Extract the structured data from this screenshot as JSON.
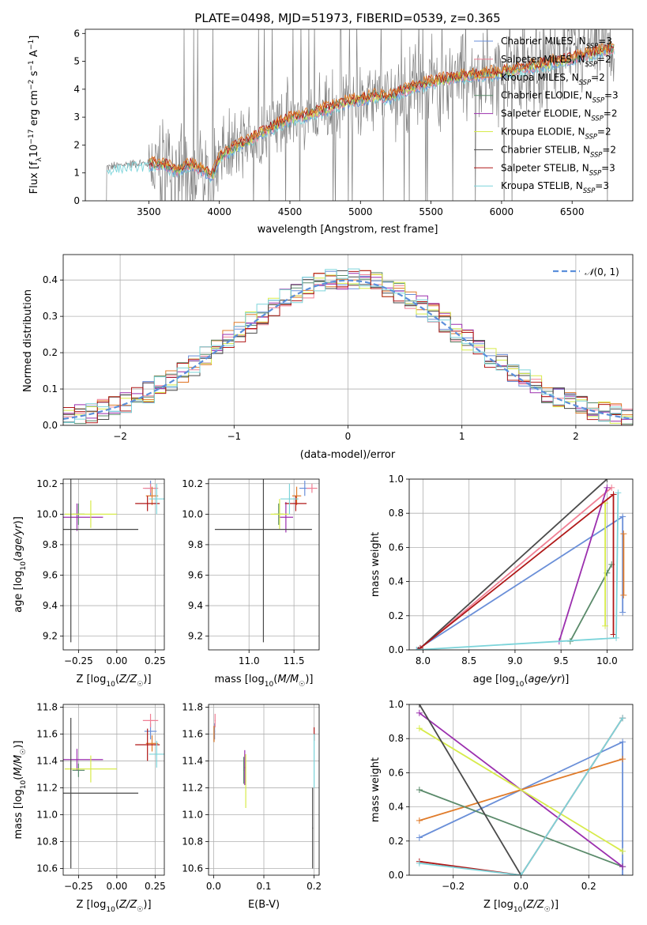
{
  "colors": {
    "chabrier_miles": "#6A8FD8",
    "salpeter_miles": "#F07F94",
    "kroupa_miles": "#E07B2A",
    "chabrier_elodie": "#5A8A6A",
    "salpeter_elodie": "#9B2FAE",
    "kroupa_elodie": "#D7EB4A",
    "chabrier_stelib": "#4A4A4A",
    "salpeter_stelib": "#B01818",
    "kroupa_stelib": "#7CD4DA",
    "spectrum": "#808080",
    "gaussian": "#5B8FDB",
    "grid": "#b0b0b0"
  },
  "legend": [
    {
      "name": "Chabrier MILES",
      "n": "3",
      "color_key": "chabrier_miles"
    },
    {
      "name": "Salpeter MILES",
      "n": "2",
      "color_key": "salpeter_miles"
    },
    {
      "name": "Kroupa MILES",
      "n": "2",
      "color_key": "kroupa_miles"
    },
    {
      "name": "Chabrier ELODIE",
      "n": "3",
      "color_key": "chabrier_elodie"
    },
    {
      "name": "Salpeter ELODIE",
      "n": "2",
      "color_key": "salpeter_elodie"
    },
    {
      "name": "Kroupa ELODIE",
      "n": "2",
      "color_key": "kroupa_elodie"
    },
    {
      "name": "Chabrier STELIB",
      "n": "2",
      "color_key": "chabrier_stelib"
    },
    {
      "name": "Salpeter STELIB",
      "n": "3",
      "color_key": "salpeter_stelib"
    },
    {
      "name": "Kroupa STELIB",
      "n": "3",
      "color_key": "kroupa_stelib"
    }
  ],
  "chart_data": [
    {
      "id": "spectrum",
      "type": "line",
      "title": "PLATE=0498, MJD=51973, FIBERID=0539, z=0.365",
      "xlabel": "wavelength [Angstrom, rest frame]",
      "ylabel": "Flux [f_λ 10^-17 erg cm^-2 s^-1 A^-1]",
      "xlim": [
        3050,
        6930
      ],
      "ylim": [
        0,
        6.15
      ],
      "xticks": [
        3500,
        4000,
        4500,
        5000,
        5500,
        6000,
        6500
      ],
      "yticks": [
        0,
        1,
        2,
        3,
        4,
        5,
        6
      ],
      "grid": false,
      "legend_position": "top-right",
      "data_range": [
        3200,
        6800
      ],
      "model_continuum": [
        [
          3200,
          1.2
        ],
        [
          3400,
          1.35
        ],
        [
          3600,
          1.3
        ],
        [
          3700,
          1.1
        ],
        [
          3800,
          1.3
        ],
        [
          3950,
          0.9
        ],
        [
          4000,
          1.55
        ],
        [
          4100,
          1.9
        ],
        [
          4200,
          2.1
        ],
        [
          4300,
          2.45
        ],
        [
          4400,
          2.7
        ],
        [
          4500,
          2.95
        ],
        [
          4600,
          3.05
        ],
        [
          4700,
          3.2
        ],
        [
          4800,
          3.35
        ],
        [
          4900,
          3.55
        ],
        [
          5000,
          3.6
        ],
        [
          5100,
          3.75
        ],
        [
          5200,
          3.7
        ],
        [
          5300,
          3.95
        ],
        [
          5400,
          4.1
        ],
        [
          5500,
          4.25
        ],
        [
          5600,
          4.35
        ],
        [
          5700,
          4.45
        ],
        [
          5800,
          4.5
        ],
        [
          5900,
          4.55
        ],
        [
          6000,
          4.6
        ],
        [
          6100,
          4.7
        ],
        [
          6200,
          4.8
        ],
        [
          6300,
          4.9
        ],
        [
          6400,
          5.0
        ],
        [
          6500,
          5.1
        ],
        [
          6600,
          5.25
        ],
        [
          6700,
          5.35
        ],
        [
          6800,
          5.45
        ]
      ]
    },
    {
      "id": "residuals",
      "type": "histogram",
      "xlabel": "(data-model)/error",
      "ylabel": "Normed distribution",
      "xlim": [
        -2.5,
        2.5
      ],
      "ylim": [
        0,
        0.47
      ],
      "xticks": [
        -2,
        -1,
        0,
        1,
        2
      ],
      "yticks": [
        0.0,
        0.1,
        0.2,
        0.3,
        0.4
      ],
      "grid": true,
      "legend_position": "top-right",
      "series": [
        {
          "name": "N(0,1)",
          "type": "gaussian",
          "mu": 0,
          "sigma": 1
        }
      ]
    },
    {
      "id": "age_vs_Z",
      "type": "errorbar",
      "xlabel": "Z [log10(Z/Z☉)]",
      "ylabel": "age [log10(age/yr)]",
      "xlim": [
        -0.35,
        0.31
      ],
      "ylim": [
        9.11,
        10.23
      ],
      "xticks": [
        -0.25,
        0.0,
        0.25
      ],
      "yticks": [
        9.2,
        9.4,
        9.6,
        9.8,
        10.0,
        10.2
      ],
      "grid": true,
      "points": [
        {
          "c": "chabrier_miles",
          "x": 0.22,
          "y": 10.17,
          "xe": 0.04,
          "ye": 0.05
        },
        {
          "c": "salpeter_miles",
          "x": 0.22,
          "y": 10.17,
          "xe": 0.05,
          "ye": 0.03
        },
        {
          "c": "kroupa_miles",
          "x": 0.23,
          "y": 10.12,
          "xe": 0.04,
          "ye": 0.06
        },
        {
          "c": "chabrier_elodie",
          "x": -0.25,
          "y": 10.0,
          "xe": 0.04,
          "ye": 0.07
        },
        {
          "c": "salpeter_elodie",
          "x": -0.26,
          "y": 9.98,
          "xe": 0.17,
          "ye": 0.09
        },
        {
          "c": "kroupa_elodie",
          "x": -0.17,
          "y": 10.0,
          "xe": 0.17,
          "ye": 0.09
        },
        {
          "c": "chabrier_stelib",
          "x": -0.3,
          "y": 9.9,
          "xe": 0.44,
          "ye": 0.74
        },
        {
          "c": "salpeter_stelib",
          "x": 0.2,
          "y": 10.07,
          "xe": 0.08,
          "ye": 0.05
        },
        {
          "c": "kroupa_stelib",
          "x": 0.26,
          "y": 10.1,
          "xe": 0.05,
          "ye": 0.1
        }
      ]
    },
    {
      "id": "age_vs_mass",
      "type": "errorbar",
      "xlabel": "mass [log10(M/M☉)]",
      "ylabel": "",
      "xlim": [
        10.55,
        11.78
      ],
      "ylim": [
        9.11,
        10.23
      ],
      "xticks": [
        11.0,
        11.5
      ],
      "yticks": [
        9.2,
        9.4,
        9.6,
        9.8,
        10.0,
        10.2
      ],
      "grid": true,
      "points": [
        {
          "c": "chabrier_miles",
          "x": 11.62,
          "y": 10.17,
          "xe": 0.06,
          "ye": 0.05
        },
        {
          "c": "salpeter_miles",
          "x": 11.7,
          "y": 10.17,
          "xe": 0.06,
          "ye": 0.03
        },
        {
          "c": "kroupa_miles",
          "x": 11.53,
          "y": 10.12,
          "xe": 0.05,
          "ye": 0.06
        },
        {
          "c": "chabrier_elodie",
          "x": 11.33,
          "y": 10.0,
          "xe": 0.05,
          "ye": 0.07
        },
        {
          "c": "salpeter_elodie",
          "x": 11.41,
          "y": 9.98,
          "xe": 0.08,
          "ye": 0.1
        },
        {
          "c": "kroupa_elodie",
          "x": 11.34,
          "y": 10.0,
          "xe": 0.1,
          "ye": 0.1
        },
        {
          "c": "chabrier_stelib",
          "x": 11.16,
          "y": 9.9,
          "xe": 0.54,
          "ye": 0.74
        },
        {
          "c": "salpeter_stelib",
          "x": 11.52,
          "y": 10.07,
          "xe": 0.12,
          "ye": 0.05
        },
        {
          "c": "kroupa_stelib",
          "x": 11.45,
          "y": 10.1,
          "xe": 0.1,
          "ye": 0.1
        }
      ]
    },
    {
      "id": "mass_vs_Z",
      "type": "errorbar",
      "xlabel": "Z [log10(Z/Z☉)]",
      "ylabel": "mass [log10(M/M☉)]",
      "xlim": [
        -0.35,
        0.31
      ],
      "ylim": [
        10.55,
        11.82
      ],
      "xticks": [
        -0.25,
        0.0,
        0.25
      ],
      "yticks": [
        10.6,
        10.8,
        11.0,
        11.2,
        11.4,
        11.6,
        11.8
      ],
      "grid": true,
      "points": [
        {
          "c": "chabrier_miles",
          "x": 0.22,
          "y": 11.62,
          "xe": 0.04,
          "ye": 0.06
        },
        {
          "c": "salpeter_miles",
          "x": 0.22,
          "y": 11.7,
          "xe": 0.05,
          "ye": 0.05
        },
        {
          "c": "kroupa_miles",
          "x": 0.23,
          "y": 11.53,
          "xe": 0.04,
          "ye": 0.06
        },
        {
          "c": "chabrier_elodie",
          "x": -0.25,
          "y": 11.33,
          "xe": 0.04,
          "ye": 0.05
        },
        {
          "c": "salpeter_elodie",
          "x": -0.26,
          "y": 11.41,
          "xe": 0.17,
          "ye": 0.08
        },
        {
          "c": "kroupa_elodie",
          "x": -0.17,
          "y": 11.34,
          "xe": 0.17,
          "ye": 0.1
        },
        {
          "c": "chabrier_stelib",
          "x": -0.3,
          "y": 11.16,
          "xe": 0.44,
          "ye": 0.56
        },
        {
          "c": "salpeter_stelib",
          "x": 0.2,
          "y": 11.52,
          "xe": 0.08,
          "ye": 0.12
        },
        {
          "c": "kroupa_stelib",
          "x": 0.26,
          "y": 11.45,
          "xe": 0.05,
          "ye": 0.1
        }
      ]
    },
    {
      "id": "mass_vs_ebv",
      "type": "errorbar",
      "xlabel": "E(B-V)",
      "ylabel": "",
      "xlim": [
        -0.01,
        0.21
      ],
      "ylim": [
        10.55,
        11.82
      ],
      "xticks": [
        0.0,
        0.1,
        0.2
      ],
      "yticks": [
        10.6,
        10.8,
        11.0,
        11.2,
        11.4,
        11.6,
        11.8
      ],
      "grid": true,
      "points": [
        {
          "c": "chabrier_miles",
          "x": 0.002,
          "y": 11.62,
          "xe": 0.001,
          "ye": 0.06
        },
        {
          "c": "salpeter_miles",
          "x": 0.003,
          "y": 11.7,
          "xe": 0.001,
          "ye": 0.05
        },
        {
          "c": "kroupa_miles",
          "x": 0.001,
          "y": 11.6,
          "xe": 0.001,
          "ye": 0.06
        },
        {
          "c": "chabrier_elodie",
          "x": 0.06,
          "y": 11.33,
          "xe": 0.001,
          "ye": 0.1
        },
        {
          "c": "salpeter_elodie",
          "x": 0.062,
          "y": 11.35,
          "xe": 0.001,
          "ye": 0.13
        },
        {
          "c": "kroupa_elodie",
          "x": 0.064,
          "y": 11.25,
          "xe": 0.001,
          "ye": 0.2
        },
        {
          "c": "chabrier_stelib",
          "x": 0.197,
          "y": 10.9,
          "xe": 0.001,
          "ye": 0.3
        },
        {
          "c": "salpeter_stelib",
          "x": 0.2,
          "y": 11.6,
          "xe": 0.001,
          "ye": 0.05
        },
        {
          "c": "kroupa_stelib",
          "x": 0.2,
          "y": 11.4,
          "xe": 0.001,
          "ye": 0.2
        }
      ]
    },
    {
      "id": "weight_vs_age",
      "type": "line",
      "xlabel": "age [log10(age/yr)]",
      "ylabel": "mass weight",
      "xlim": [
        7.85,
        10.28
      ],
      "ylim": [
        0,
        1
      ],
      "xticks": [
        8.0,
        8.5,
        9.0,
        9.5,
        10.0
      ],
      "yticks": [
        0.0,
        0.2,
        0.4,
        0.6,
        0.8,
        1.0
      ],
      "grid": true,
      "series": [
        {
          "c": "chabrier_miles",
          "pts": [
            [
              7.93,
              0.0
            ],
            [
              10.17,
              0.78
            ],
            [
              10.17,
              0.22
            ]
          ]
        },
        {
          "c": "salpeter_miles",
          "pts": [
            [
              7.95,
              0.0
            ],
            [
              10.05,
              0.95
            ]
          ]
        },
        {
          "c": "kroupa_miles",
          "pts": [
            [
              10.18,
              0.68
            ],
            [
              10.18,
              0.32
            ]
          ]
        },
        {
          "c": "chabrier_elodie",
          "pts": [
            [
              9.6,
              0.05
            ],
            [
              10.05,
              0.5
            ],
            [
              10.0,
              0.45
            ]
          ]
        },
        {
          "c": "salpeter_elodie",
          "pts": [
            [
              9.48,
              0.05
            ],
            [
              10.0,
              0.95
            ]
          ]
        },
        {
          "c": "kroupa_elodie",
          "pts": [
            [
              9.98,
              0.86
            ],
            [
              9.98,
              0.14
            ]
          ]
        },
        {
          "c": "chabrier_stelib",
          "pts": [
            [
              7.95,
              0.0
            ],
            [
              10.0,
              1.0
            ]
          ]
        },
        {
          "c": "salpeter_stelib",
          "pts": [
            [
              7.97,
              0.01
            ],
            [
              10.07,
              0.91
            ],
            [
              10.07,
              0.09
            ]
          ]
        },
        {
          "c": "kroupa_stelib",
          "pts": [
            [
              7.93,
              0.0
            ],
            [
              10.1,
              0.07
            ],
            [
              10.12,
              0.92
            ]
          ]
        }
      ]
    },
    {
      "id": "weight_vs_Z",
      "type": "line",
      "xlabel": "Z [log10(Z/Z☉)]",
      "ylabel": "mass weight",
      "xlim": [
        -0.33,
        0.33
      ],
      "ylim": [
        0,
        1
      ],
      "xticks": [
        -0.2,
        0.0,
        0.2
      ],
      "yticks": [
        0.0,
        0.2,
        0.4,
        0.6,
        0.8,
        1.0
      ],
      "grid": true,
      "series": [
        {
          "c": "chabrier_miles",
          "pts": [
            [
              -0.3,
              0.22
            ],
            [
              0.3,
              0.78
            ],
            [
              0.3,
              0.0
            ]
          ]
        },
        {
          "c": "kroupa_miles",
          "pts": [
            [
              -0.3,
              0.32
            ],
            [
              0.3,
              0.68
            ]
          ]
        },
        {
          "c": "chabrier_elodie",
          "pts": [
            [
              -0.3,
              0.5
            ],
            [
              0.3,
              0.05
            ]
          ]
        },
        {
          "c": "salpeter_elodie",
          "pts": [
            [
              -0.3,
              0.95
            ],
            [
              0.3,
              0.05
            ]
          ]
        },
        {
          "c": "kroupa_elodie",
          "pts": [
            [
              -0.3,
              0.86
            ],
            [
              0.3,
              0.14
            ]
          ]
        },
        {
          "c": "chabrier_stelib",
          "pts": [
            [
              -0.3,
              1.0
            ],
            [
              0.0,
              0.0
            ]
          ]
        },
        {
          "c": "salpeter_stelib",
          "pts": [
            [
              -0.3,
              0.08
            ],
            [
              0.0,
              0.0
            ],
            [
              0.3,
              0.92
            ]
          ]
        },
        {
          "c": "kroupa_stelib",
          "pts": [
            [
              -0.3,
              0.07
            ],
            [
              0.0,
              0.0
            ],
            [
              0.3,
              0.92
            ]
          ]
        }
      ]
    }
  ]
}
